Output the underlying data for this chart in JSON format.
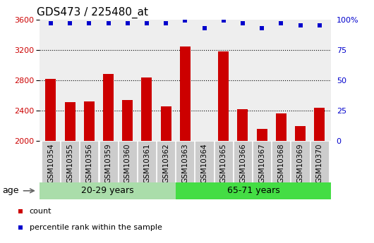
{
  "title": "GDS473 / 225480_at",
  "categories": [
    "GSM10354",
    "GSM10355",
    "GSM10356",
    "GSM10359",
    "GSM10360",
    "GSM10361",
    "GSM10362",
    "GSM10363",
    "GSM10364",
    "GSM10365",
    "GSM10366",
    "GSM10367",
    "GSM10368",
    "GSM10369",
    "GSM10370"
  ],
  "counts": [
    2820,
    2510,
    2520,
    2880,
    2540,
    2840,
    2460,
    3240,
    2003,
    3180,
    2420,
    2160,
    2360,
    2200,
    2440
  ],
  "percentiles": [
    97,
    97,
    97,
    97,
    97,
    97,
    97,
    99,
    93,
    99,
    97,
    93,
    97,
    95,
    95
  ],
  "group1_label": "20-29 years",
  "group2_label": "65-71 years",
  "group1_count": 7,
  "group2_count": 8,
  "ylim_left": [
    2000,
    3600
  ],
  "ylim_right": [
    0,
    100
  ],
  "yticks_left": [
    2000,
    2400,
    2800,
    3200,
    3600
  ],
  "yticks_right": [
    0,
    25,
    50,
    75,
    100
  ],
  "bar_color": "#cc0000",
  "dot_color": "#0000cc",
  "group1_bg": "#aaddaa",
  "group2_bg": "#44dd44",
  "plot_bg": "#eeeeee",
  "tick_bg": "#cccccc",
  "legend_count_label": "count",
  "legend_pct_label": "percentile rank within the sample",
  "age_label": "age",
  "title_fontsize": 11,
  "axis_label_fontsize": 7.5,
  "tick_fontsize": 8,
  "bar_width": 0.55,
  "grid_lines": [
    2400,
    2800,
    3200
  ],
  "right_ytick_labels": [
    "0",
    "25",
    "50",
    "75",
    "100%"
  ]
}
